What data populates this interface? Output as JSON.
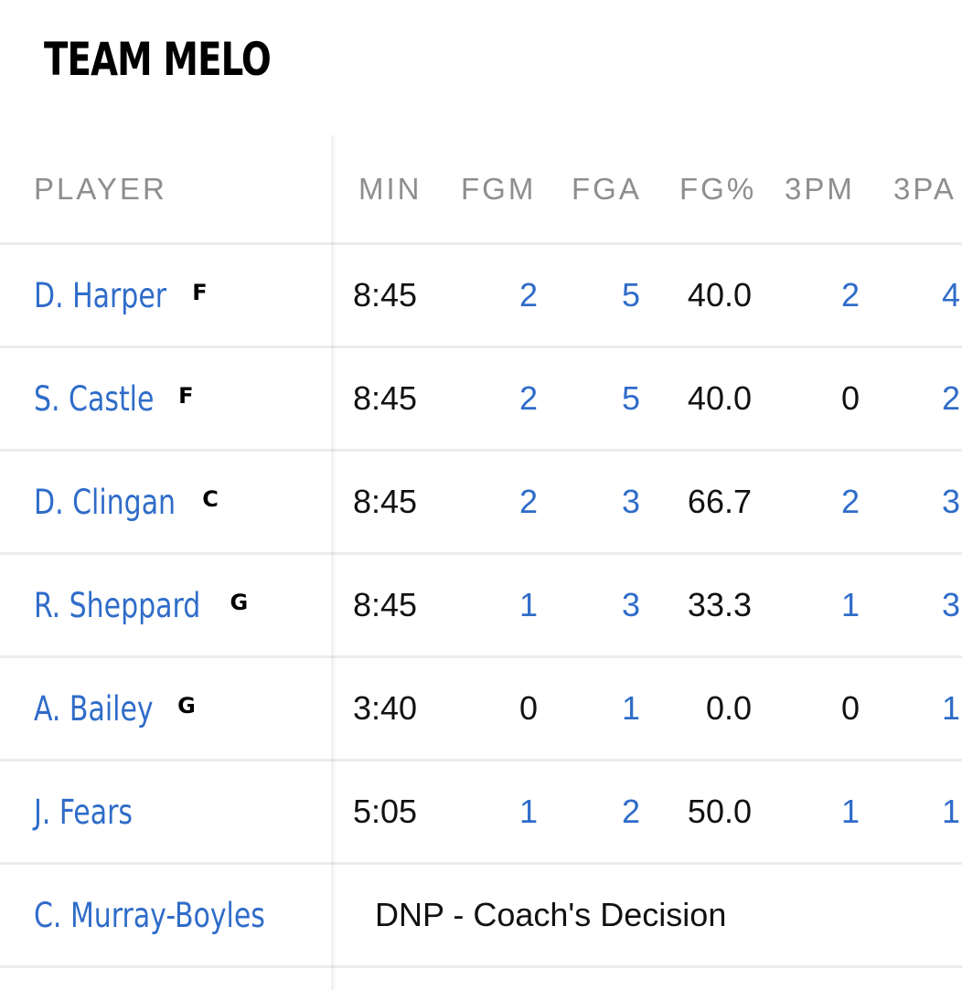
{
  "team": {
    "name": "TEAM MELO"
  },
  "table": {
    "headers": {
      "player": "PLAYER",
      "min": "MIN",
      "fgm": "FGM",
      "fga": "FGA",
      "fgpct": "FG%",
      "tpm": "3PM",
      "tpa": "3PA"
    },
    "rows": [
      {
        "name": "D. Harper",
        "pos": "F",
        "min": "8:45",
        "fgm": "2",
        "fga": "5",
        "fgpct": "40.0",
        "tpm": "2",
        "tpa": "4"
      },
      {
        "name": "S. Castle",
        "pos": "F",
        "min": "8:45",
        "fgm": "2",
        "fga": "5",
        "fgpct": "40.0",
        "tpm": "0",
        "tpa": "2"
      },
      {
        "name": "D. Clingan",
        "pos": "C",
        "min": "8:45",
        "fgm": "2",
        "fga": "3",
        "fgpct": "66.7",
        "tpm": "2",
        "tpa": "3"
      },
      {
        "name": "R. Sheppard",
        "pos": "G",
        "min": "8:45",
        "fgm": "1",
        "fga": "3",
        "fgpct": "33.3",
        "tpm": "1",
        "tpa": "3"
      },
      {
        "name": "A. Bailey",
        "pos": "G",
        "min": "3:40",
        "fgm": "0",
        "fga": "1",
        "fgpct": "0.0",
        "tpm": "0",
        "tpa": "1"
      },
      {
        "name": "J. Fears",
        "pos": "",
        "min": "5:05",
        "fgm": "1",
        "fga": "2",
        "fgpct": "50.0",
        "tpm": "1",
        "tpa": "1"
      }
    ],
    "dnp_row": {
      "name": "C. Murray-Boyles",
      "status": "DNP - Coach's Decision"
    }
  },
  "colors": {
    "link": "#2f6cc9",
    "text": "#111111",
    "header": "#8e8e8e",
    "divider": "#ececec"
  }
}
